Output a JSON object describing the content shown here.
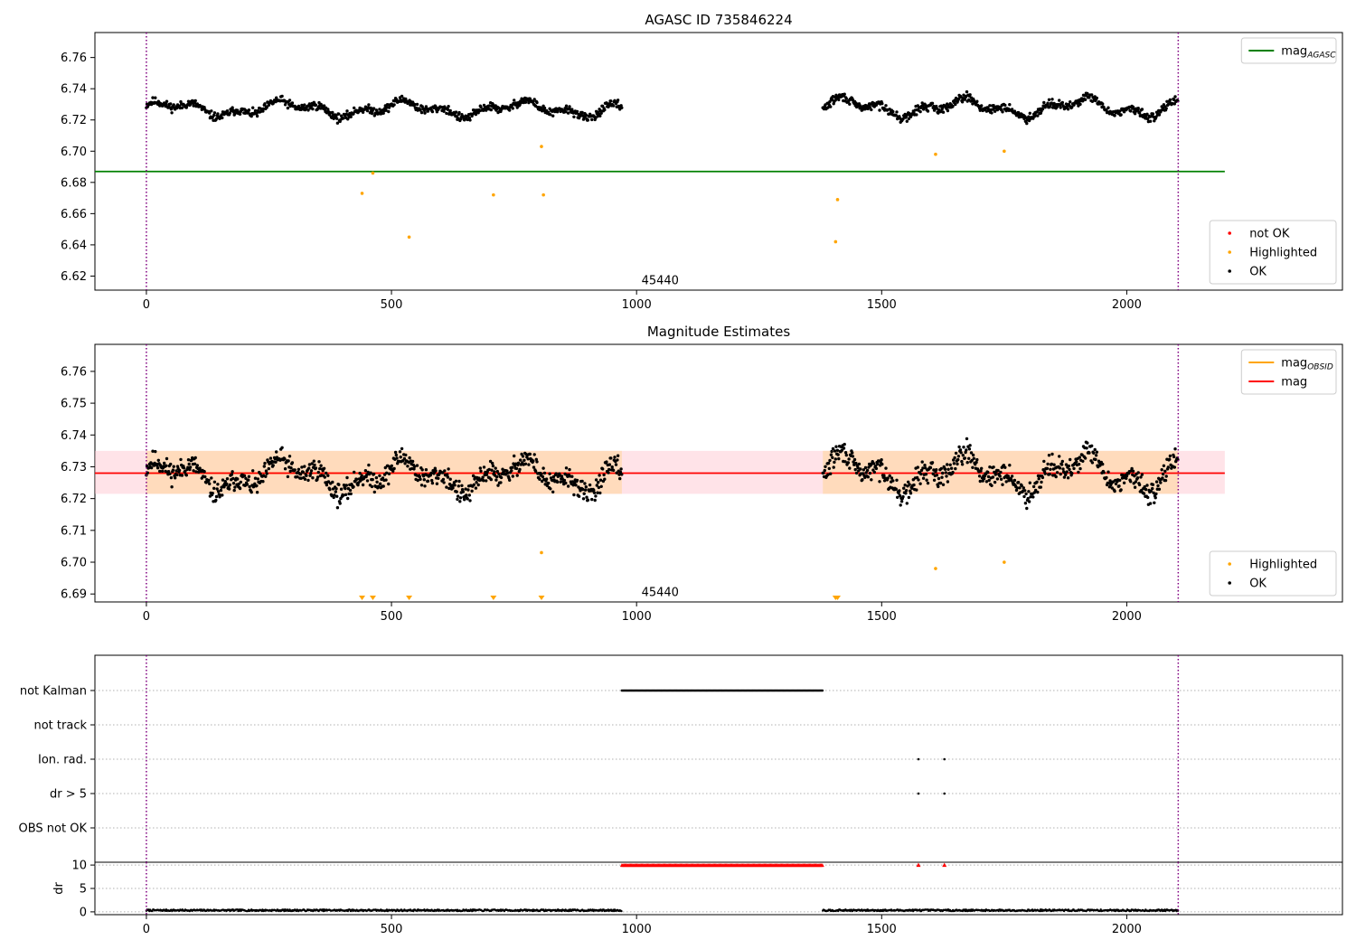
{
  "figure": {
    "background": "#ffffff"
  },
  "chart_data": [
    {
      "type": "scatter",
      "title": "AGASC ID 735846224",
      "xlim": [
        -105,
        2440
      ],
      "ylim": [
        6.611,
        6.776
      ],
      "xticks": [
        0,
        500,
        1000,
        1500,
        2000
      ],
      "yticks": [
        6.62,
        6.64,
        6.66,
        6.68,
        6.7,
        6.72,
        6.74,
        6.76
      ],
      "vlines": [
        0,
        2105
      ],
      "hline": {
        "y": 6.687,
        "x_end": 2200,
        "color": "#008000"
      },
      "annotation": {
        "text": "45440",
        "x": 1010,
        "y": 6.617
      },
      "segments": [
        {
          "x0": 0,
          "x1": 970,
          "center": 6.727,
          "amp": 0.006,
          "noise": 0.004,
          "seed": 11,
          "phase": 0.3
        },
        {
          "x0": 1380,
          "x1": 2105,
          "center": 6.728,
          "amp": 0.007,
          "noise": 0.004,
          "seed": 29,
          "phase": 1.7
        }
      ],
      "step": 1.3,
      "highlighted": [
        [
          440,
          6.673
        ],
        [
          462,
          6.686
        ],
        [
          536,
          6.645
        ],
        [
          708,
          6.672
        ],
        [
          806,
          6.703
        ],
        [
          810,
          6.672
        ],
        [
          1406,
          6.642
        ],
        [
          1410,
          6.669
        ],
        [
          1610,
          6.698
        ],
        [
          1750,
          6.7
        ]
      ],
      "series_colors": {
        "ok": "#000000",
        "highlighted": "#ffa500",
        "not_ok": "#ff0000"
      },
      "legends": [
        {
          "position": "top-right",
          "entries": [
            {
              "label": "mag",
              "sub": "AGASC",
              "kind": "line",
              "color": "#008000"
            }
          ]
        },
        {
          "position": "bottom-right",
          "entries": [
            {
              "label": "not OK",
              "kind": "dot",
              "color": "#ff0000"
            },
            {
              "label": "Highlighted",
              "kind": "dot",
              "color": "#ffa500"
            },
            {
              "label": "OK",
              "kind": "dot",
              "color": "#000000"
            }
          ]
        }
      ]
    },
    {
      "type": "scatter",
      "title": "Magnitude Estimates",
      "xlim": [
        -105,
        2440
      ],
      "ylim": [
        6.6875,
        6.7685
      ],
      "xticks": [
        0,
        500,
        1000,
        1500,
        2000
      ],
      "yticks": [
        6.69,
        6.7,
        6.71,
        6.72,
        6.73,
        6.74,
        6.75,
        6.76
      ],
      "vlines": [
        0,
        2105
      ],
      "band_obsid": {
        "x0": 0,
        "x1": 970,
        "y0": 6.7215,
        "y1": 6.735,
        "color": "#ffdab9"
      },
      "band_obsid2": {
        "x0": 1380,
        "x1": 2105,
        "y0": 6.7215,
        "y1": 6.735,
        "color": "#ffdab9"
      },
      "band_mag": {
        "x0": 0,
        "x1": 2200,
        "y0": 6.7215,
        "y1": 6.735,
        "color": "#ffc0cb"
      },
      "mag_line": {
        "y": 6.728,
        "x_end": 2200,
        "color": "#ff0000"
      },
      "obsid_line": {
        "y": 6.728,
        "color": "#ffa500"
      },
      "annotation": {
        "text": "45440",
        "x": 1010,
        "y": 6.6905
      },
      "segments": [
        {
          "x0": 0,
          "x1": 970,
          "center": 6.727,
          "amp": 0.006,
          "noise": 0.005,
          "seed": 11,
          "phase": 0.3
        },
        {
          "x0": 1380,
          "x1": 2105,
          "center": 6.728,
          "amp": 0.007,
          "noise": 0.005,
          "seed": 29,
          "phase": 1.7
        }
      ],
      "step": 1.3,
      "highlighted": [
        [
          806,
          6.703
        ],
        [
          1610,
          6.698
        ],
        [
          1750,
          6.7
        ]
      ],
      "below_markers_x": [
        440,
        462,
        536,
        708,
        806,
        1406,
        1410
      ],
      "series_colors": {
        "ok": "#000000",
        "highlighted": "#ffa500"
      },
      "legends": [
        {
          "position": "top-right",
          "entries": [
            {
              "label": "mag",
              "sub": "OBSID",
              "kind": "line",
              "color": "#ffa500"
            },
            {
              "label": "mag",
              "kind": "line",
              "color": "#ff0000"
            }
          ]
        },
        {
          "position": "bottom-right",
          "entries": [
            {
              "label": "Highlighted",
              "kind": "dot",
              "color": "#ffa500"
            },
            {
              "label": "OK",
              "kind": "dot",
              "color": "#000000"
            }
          ]
        }
      ]
    },
    {
      "type": "scatter",
      "title": "",
      "xlim": [
        -105,
        2440
      ],
      "vlines": [
        0,
        2105
      ],
      "categories": [
        "not Kalman",
        "not track",
        "Ion. rad.",
        "dr > 5",
        "OBS not OK"
      ],
      "flags": {
        "not Kalman": {
          "ranges": [
            [
              970,
              1380
            ]
          ],
          "points": []
        },
        "not track": {
          "ranges": [],
          "points": []
        },
        "Ion. rad.": {
          "ranges": [],
          "points": [
            1575,
            1628
          ]
        },
        "dr > 5": {
          "ranges": [],
          "points": [
            1575,
            1628
          ]
        },
        "OBS not OK": {
          "ranges": [],
          "points": []
        }
      },
      "flag_color": "#000000"
    },
    {
      "type": "scatter",
      "xlim": [
        -105,
        2440
      ],
      "ylim": [
        -0.6,
        10.6
      ],
      "xticks": [
        0,
        500,
        1000,
        1500,
        2000
      ],
      "yticks": [
        0,
        5,
        10
      ],
      "ylabel": "dr",
      "vlines": [
        0,
        2105
      ],
      "low_segments": [
        {
          "x0": 0,
          "x1": 970
        },
        {
          "x0": 1380,
          "x1": 2105
        }
      ],
      "clipped": {
        "ranges": [
          [
            970,
            1380
          ]
        ],
        "points": [
          1575,
          1628
        ],
        "value": 10,
        "color": "#ff0000"
      }
    }
  ]
}
